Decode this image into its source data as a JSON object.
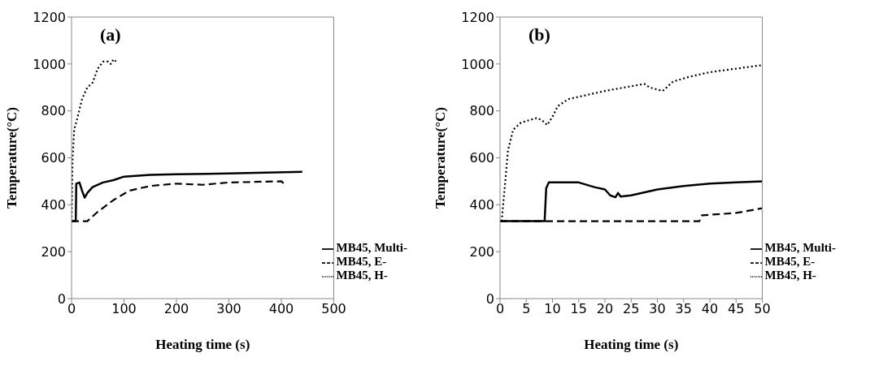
{
  "chart_data": [
    {
      "type": "line",
      "annotations": [
        "(a)"
      ],
      "xlabel": "Heating time (s)",
      "ylabel": "Temperature(°C)",
      "xlim": [
        0,
        500
      ],
      "xticks": [
        0,
        100,
        200,
        300,
        400,
        500
      ],
      "ylim": [
        0,
        1200
      ],
      "yticks": [
        0,
        200,
        400,
        600,
        800,
        1000,
        1200
      ],
      "legend": "bottom right",
      "grid": false,
      "marker": "none",
      "series": [
        {
          "name": "MB45, Multi-",
          "color": "#000000",
          "line_style": "solid",
          "x": [
            0,
            8,
            9,
            15,
            20,
            25,
            30,
            40,
            60,
            80,
            100,
            150,
            200,
            300,
            440
          ],
          "values": [
            330,
            330,
            490,
            495,
            460,
            430,
            450,
            475,
            495,
            505,
            520,
            527,
            530,
            533,
            540
          ]
        },
        {
          "name": "MB45, E-",
          "color": "#000000",
          "line_style": "dashed",
          "x": [
            0,
            30,
            50,
            80,
            110,
            150,
            200,
            250,
            300,
            400,
            405
          ],
          "values": [
            330,
            330,
            370,
            420,
            460,
            480,
            490,
            485,
            495,
            500,
            490
          ]
        },
        {
          "name": "MB45, H-",
          "color": "#000000",
          "line_style": "dotted",
          "x": [
            0,
            2,
            5,
            10,
            20,
            30,
            40,
            50,
            60,
            70,
            75,
            80,
            85
          ],
          "values": [
            330,
            600,
            720,
            760,
            850,
            900,
            920,
            980,
            1010,
            1010,
            1000,
            1020,
            1010
          ]
        }
      ]
    },
    {
      "type": "line",
      "annotations": [
        "(b)"
      ],
      "xlabel": "Heating time (s)",
      "ylabel": "Temperature(°C)",
      "xlim": [
        0,
        50
      ],
      "xticks": [
        0,
        5,
        10,
        15,
        20,
        25,
        30,
        35,
        40,
        45,
        50
      ],
      "ylim": [
        0,
        1200
      ],
      "yticks": [
        0,
        200,
        400,
        600,
        800,
        1000,
        1200
      ],
      "legend": "bottom right",
      "grid": false,
      "marker": "none",
      "series": [
        {
          "name": "MB45, Multi-",
          "color": "#000000",
          "line_style": "solid",
          "x": [
            0,
            8.5,
            8.8,
            9.3,
            12,
            15,
            18,
            20,
            21,
            22,
            22.5,
            23,
            25,
            30,
            35,
            40,
            45,
            50
          ],
          "values": [
            330,
            330,
            470,
            495,
            495,
            495,
            475,
            465,
            440,
            432,
            450,
            435,
            440,
            465,
            480,
            490,
            495,
            500
          ]
        },
        {
          "name": "MB45, E-",
          "color": "#000000",
          "line_style": "dashed",
          "x": [
            0,
            38,
            38.5,
            45,
            50
          ],
          "values": [
            330,
            330,
            355,
            365,
            385
          ]
        },
        {
          "name": "MB45, H-",
          "color": "#000000",
          "line_style": "dotted",
          "x": [
            0.3,
            1,
            1.5,
            2.5,
            4,
            7,
            8,
            9,
            10,
            11,
            13,
            17,
            20,
            25,
            27.5,
            28.5,
            31,
            33,
            36,
            40,
            45,
            50
          ],
          "values": [
            330,
            500,
            630,
            720,
            750,
            770,
            760,
            740,
            775,
            820,
            850,
            870,
            885,
            905,
            915,
            900,
            885,
            925,
            945,
            965,
            980,
            995
          ]
        }
      ]
    }
  ]
}
